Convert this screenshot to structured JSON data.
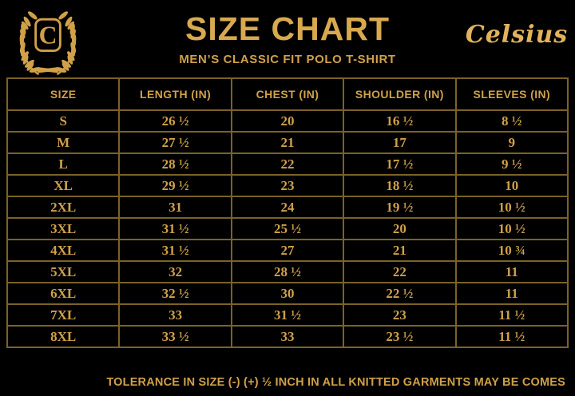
{
  "brand": {
    "name": "Celsius",
    "logo_letter": "C"
  },
  "header": {
    "title": "SIZE CHART",
    "subtitle": "MEN’S CLASSIC FIT POLO T-SHIRT"
  },
  "table": {
    "columns": [
      "SIZE",
      "LENGTH (IN)",
      "CHEST (IN)",
      "SHOULDER (IN)",
      "SLEEVES (IN)"
    ],
    "rows": [
      [
        "S",
        "26 ½",
        "20",
        "16 ½",
        "8 ½"
      ],
      [
        "M",
        "27 ½",
        "21",
        "17",
        "9"
      ],
      [
        "L",
        "28 ½",
        "22",
        "17 ½",
        "9 ½"
      ],
      [
        "XL",
        "29 ½",
        "23",
        "18 ½",
        "10"
      ],
      [
        "2XL",
        "31",
        "24",
        "19 ½",
        "10 ½"
      ],
      [
        "3XL",
        "31 ½",
        "25 ½",
        "20",
        "10 ½"
      ],
      [
        "4XL",
        "31 ½",
        "27",
        "21",
        "10 ¾"
      ],
      [
        "5XL",
        "32",
        "28 ½",
        "22",
        "11"
      ],
      [
        "6XL",
        "32 ½",
        "30",
        "22 ½",
        "11"
      ],
      [
        "7XL",
        "33",
        "31 ½",
        "23",
        "11 ½"
      ],
      [
        "8XL",
        "33 ½",
        "33",
        "23 ½",
        "11 ½"
      ]
    ]
  },
  "footer": {
    "note": "TOLERANCE IN SIZE (-) (+)  ½ INCH IN ALL KNITTED GARMENTS MAY BE COMES"
  },
  "colors": {
    "background": "#000000",
    "gold_text": "#d0a149",
    "gold_title": "#d8a94f",
    "gold_script": "#e2b35c",
    "border_gold": "#7b6226"
  }
}
